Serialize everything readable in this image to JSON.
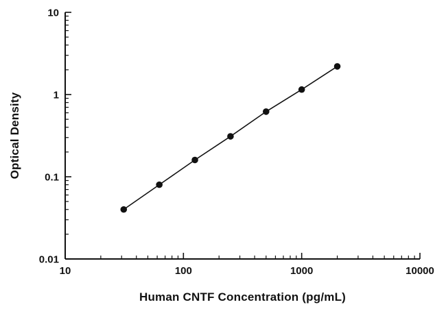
{
  "chart_data": {
    "type": "scatter",
    "title": "",
    "xlabel": "Human CNTF Concentration (pg/mL)",
    "ylabel": "Optical Density",
    "xscale": "log",
    "yscale": "log",
    "xlim": [
      10,
      10000
    ],
    "ylim": [
      0.01,
      10
    ],
    "x": [
      31.25,
      62.5,
      125,
      250,
      500,
      1000,
      2000
    ],
    "y": [
      0.04,
      0.08,
      0.16,
      0.31,
      0.62,
      1.15,
      2.2
    ],
    "x_ticks": [
      10,
      100,
      1000,
      10000
    ],
    "x_tick_labels": [
      "10",
      "100",
      "1000",
      "10000"
    ],
    "y_ticks": [
      0.01,
      0.1,
      1,
      10
    ],
    "y_tick_labels": [
      "0.01",
      "0.1",
      "1",
      "10"
    ],
    "grid": false,
    "legend": false,
    "line_color": "#111111",
    "marker_color": "#111111",
    "axis_color": "#111111",
    "series_name": "standard-curve"
  }
}
